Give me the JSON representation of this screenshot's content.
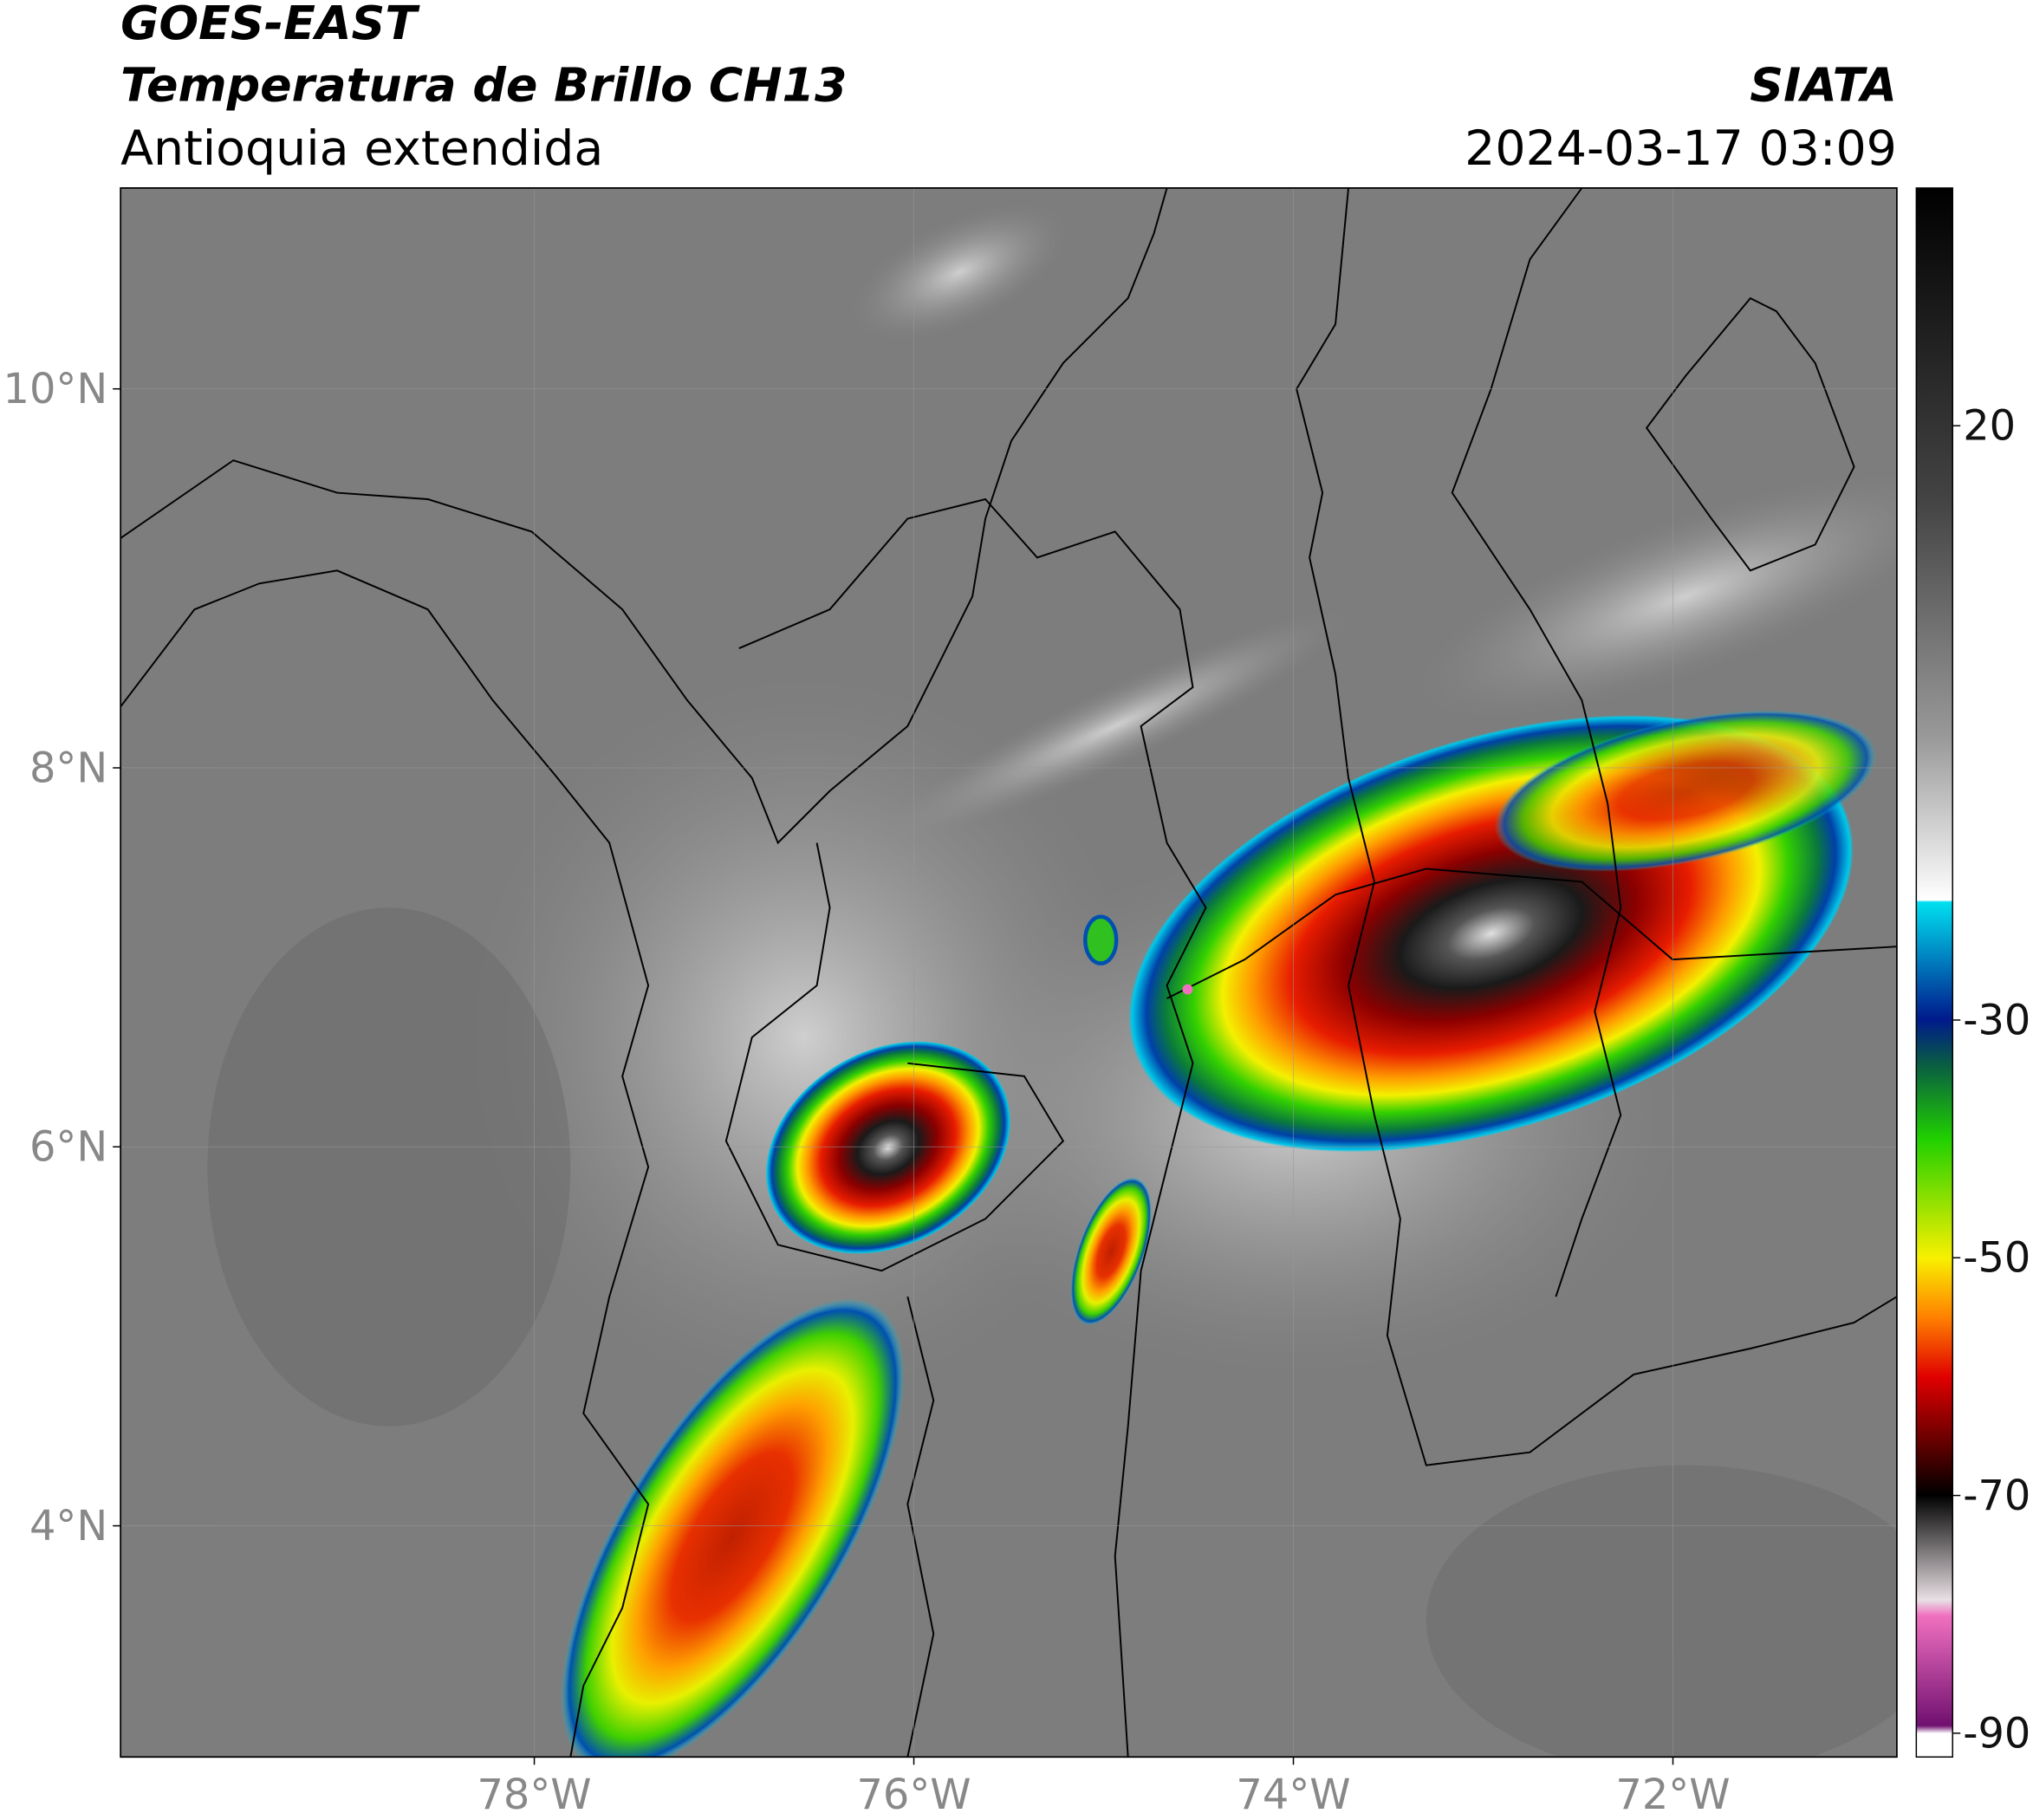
{
  "header": {
    "title": "GOES-EAST",
    "subtitle_bold": "Temperatura de Brillo CH13",
    "region": "Antioquia extendida",
    "source": "SIATA",
    "datetime": "2024-03-17 03:09"
  },
  "map": {
    "xlim": [
      -80.18,
      -70.82
    ],
    "ylim": [
      2.78,
      11.06
    ],
    "xticks": [
      {
        "value": -78,
        "label": "78°W"
      },
      {
        "value": -76,
        "label": "76°W"
      },
      {
        "value": -74,
        "label": "74°W"
      },
      {
        "value": -72,
        "label": "72°W"
      }
    ],
    "yticks": [
      {
        "value": 10,
        "label": "10°N"
      },
      {
        "value": 8,
        "label": "8°N"
      },
      {
        "value": 6,
        "label": "6°N"
      },
      {
        "value": 4,
        "label": "4°N"
      }
    ],
    "grid": true
  },
  "colorbar": {
    "lim": [
      -92,
      40
    ],
    "ticks": [
      20,
      -30,
      -50,
      -70,
      -90
    ]
  }
}
